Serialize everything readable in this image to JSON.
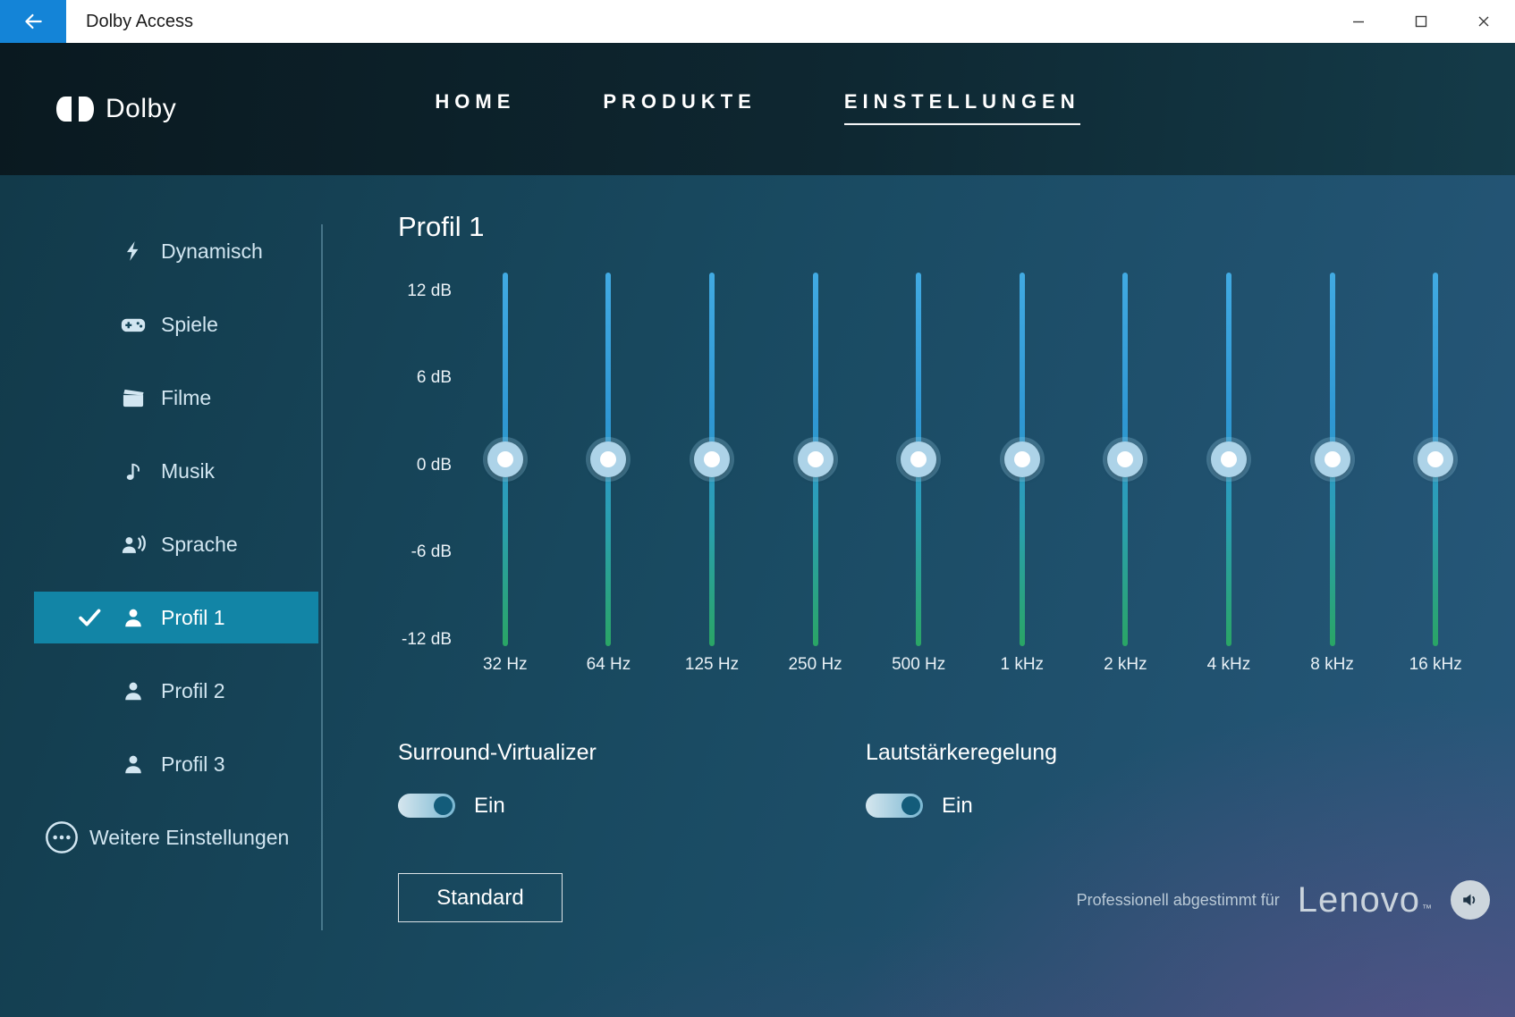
{
  "titlebar": {
    "title": "Dolby Access"
  },
  "header": {
    "brand": "Dolby",
    "nav": [
      {
        "label": "HOME",
        "active": false
      },
      {
        "label": "PRODUKTE",
        "active": false
      },
      {
        "label": "EINSTELLUNGEN",
        "active": true
      }
    ]
  },
  "sidebar": {
    "items": [
      {
        "label": "Dynamisch",
        "icon": "lightning-icon",
        "selected": false
      },
      {
        "label": "Spiele",
        "icon": "gamepad-icon",
        "selected": false
      },
      {
        "label": "Filme",
        "icon": "clapperboard-icon",
        "selected": false
      },
      {
        "label": "Musik",
        "icon": "music-note-icon",
        "selected": false
      },
      {
        "label": "Sprache",
        "icon": "voice-icon",
        "selected": false
      },
      {
        "label": "Profil 1",
        "icon": "person-icon",
        "selected": true
      },
      {
        "label": "Profil 2",
        "icon": "person-icon",
        "selected": false
      },
      {
        "label": "Profil 3",
        "icon": "person-icon",
        "selected": false
      },
      {
        "label": "Weitere Einstellungen",
        "icon": "ellipsis-circle-icon",
        "selected": false
      }
    ]
  },
  "equalizer": {
    "title": "Profil 1",
    "db_labels": [
      "12 dB",
      "6 dB",
      "0 dB",
      "-6 dB",
      "-12 dB"
    ],
    "range_db": [
      -12,
      12
    ],
    "bands": [
      {
        "freq": "32 Hz",
        "value_db": 0
      },
      {
        "freq": "64 Hz",
        "value_db": 0
      },
      {
        "freq": "125 Hz",
        "value_db": 0
      },
      {
        "freq": "250 Hz",
        "value_db": 0
      },
      {
        "freq": "500 Hz",
        "value_db": 0
      },
      {
        "freq": "1 kHz",
        "value_db": 0
      },
      {
        "freq": "2 kHz",
        "value_db": 0
      },
      {
        "freq": "4 kHz",
        "value_db": 0
      },
      {
        "freq": "8 kHz",
        "value_db": 0
      },
      {
        "freq": "16 kHz",
        "value_db": 0
      }
    ]
  },
  "controls": {
    "surround": {
      "label": "Surround-Virtualizer",
      "state": "Ein",
      "on": true
    },
    "volume": {
      "label": "Lautstärkeregelung",
      "state": "Ein",
      "on": true
    },
    "default_button": "Standard"
  },
  "footer": {
    "tuned_text": "Professionell abgestimmt für",
    "brand": "Lenovo",
    "trademark": "™"
  },
  "colors": {
    "accent_blue": "#1484d7",
    "selected_item": "#1285a6",
    "slider_top": "#3fa9e1",
    "slider_bottom": "#2aa565",
    "toggle_thumb": "#135c7a"
  }
}
